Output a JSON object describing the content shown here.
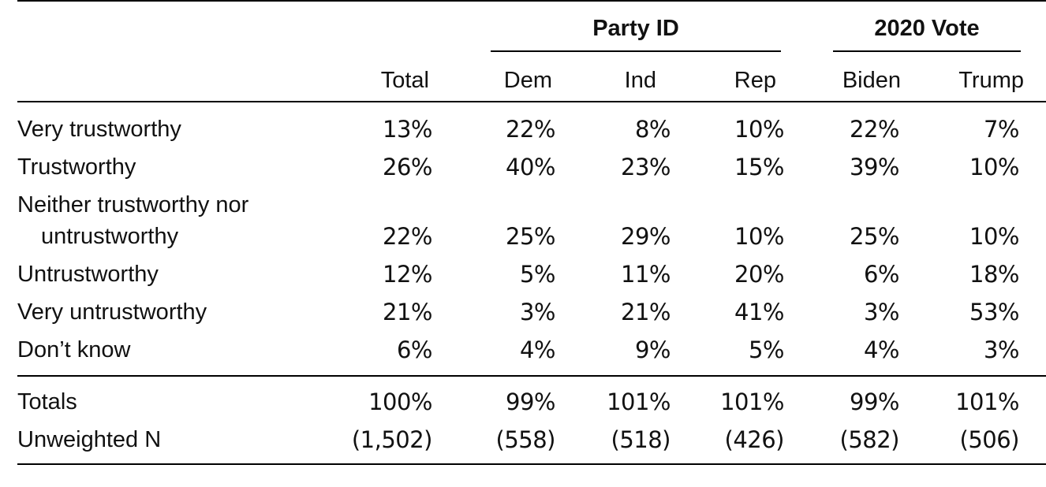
{
  "table": {
    "groups": [
      {
        "label": "Party ID"
      },
      {
        "label": "2020 Vote"
      }
    ],
    "columns": [
      "Total",
      "Dem",
      "Ind",
      "Rep",
      "Biden",
      "Trump"
    ],
    "rows": [
      {
        "label": "Very trustworthy",
        "values": [
          "13%",
          "22%",
          "8%",
          "10%",
          "22%",
          "7%"
        ]
      },
      {
        "label": "Trustworthy",
        "values": [
          "26%",
          "40%",
          "23%",
          "15%",
          "39%",
          "10%"
        ]
      },
      {
        "label_line1": "Neither trustworthy nor",
        "label_line2": "untrustworthy",
        "values": [
          "22%",
          "25%",
          "29%",
          "10%",
          "25%",
          "10%"
        ]
      },
      {
        "label": "Untrustworthy",
        "values": [
          "12%",
          "5%",
          "11%",
          "20%",
          "6%",
          "18%"
        ]
      },
      {
        "label": "Very untrustworthy",
        "values": [
          "21%",
          "3%",
          "21%",
          "41%",
          "3%",
          "53%"
        ]
      },
      {
        "label": "Don’t know",
        "values": [
          "6%",
          "4%",
          "9%",
          "5%",
          "4%",
          "3%"
        ]
      }
    ],
    "totals": {
      "label": "Totals",
      "values": [
        "100%",
        "99%",
        "101%",
        "101%",
        "99%",
        "101%"
      ]
    },
    "n": {
      "label": "Unweighted N",
      "values": [
        "(1,502)",
        "(558)",
        "(518)",
        "(426)",
        "(582)",
        "(506)"
      ]
    }
  }
}
